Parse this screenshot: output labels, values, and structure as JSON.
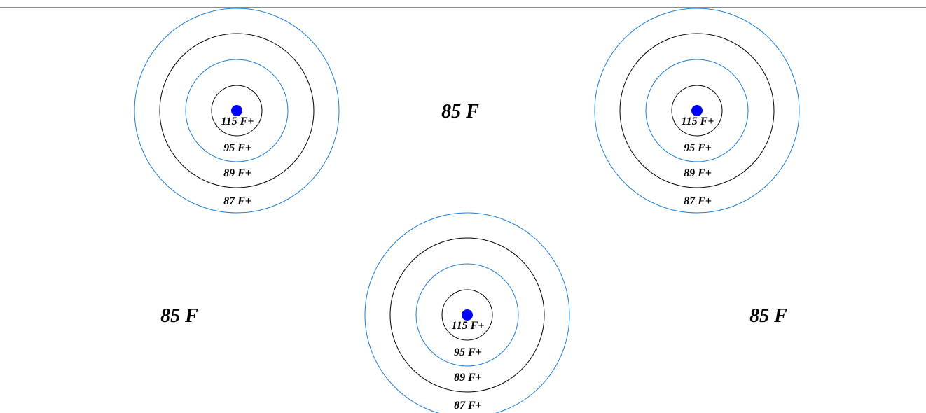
{
  "ambient_temperature": "85 F",
  "ring_labels": [
    "115 F+",
    "95 F+",
    "89 F+",
    "87 F+"
  ],
  "colors": {
    "ring_alt": "#1f7fd6",
    "ring_main": "#000000",
    "heat_source": "#0000ff",
    "top_rule": "#8a8a8a"
  },
  "heat_sources": [
    {
      "name": "heat-source-top-left",
      "rings": [
        {
          "label": "115 F+",
          "color": "#000000"
        },
        {
          "label": "95 F+",
          "color": "#1f7fd6"
        },
        {
          "label": "89 F+",
          "color": "#000000"
        },
        {
          "label": "87 F+",
          "color": "#1f7fd6"
        }
      ]
    },
    {
      "name": "heat-source-top-right",
      "rings": [
        {
          "label": "115 F+",
          "color": "#000000"
        },
        {
          "label": "95 F+",
          "color": "#1f7fd6"
        },
        {
          "label": "89 F+",
          "color": "#000000"
        },
        {
          "label": "87 F+",
          "color": "#1f7fd6"
        }
      ]
    },
    {
      "name": "heat-source-bottom-center",
      "rings": [
        {
          "label": "115 F+",
          "color": "#000000"
        },
        {
          "label": "95 F+",
          "color": "#1f7fd6"
        },
        {
          "label": "89 F+",
          "color": "#000000"
        },
        {
          "label": "87 F+",
          "color": "#1f7fd6"
        }
      ]
    }
  ],
  "ambient_labels": [
    "85 F",
    "85 F",
    "85 F"
  ]
}
